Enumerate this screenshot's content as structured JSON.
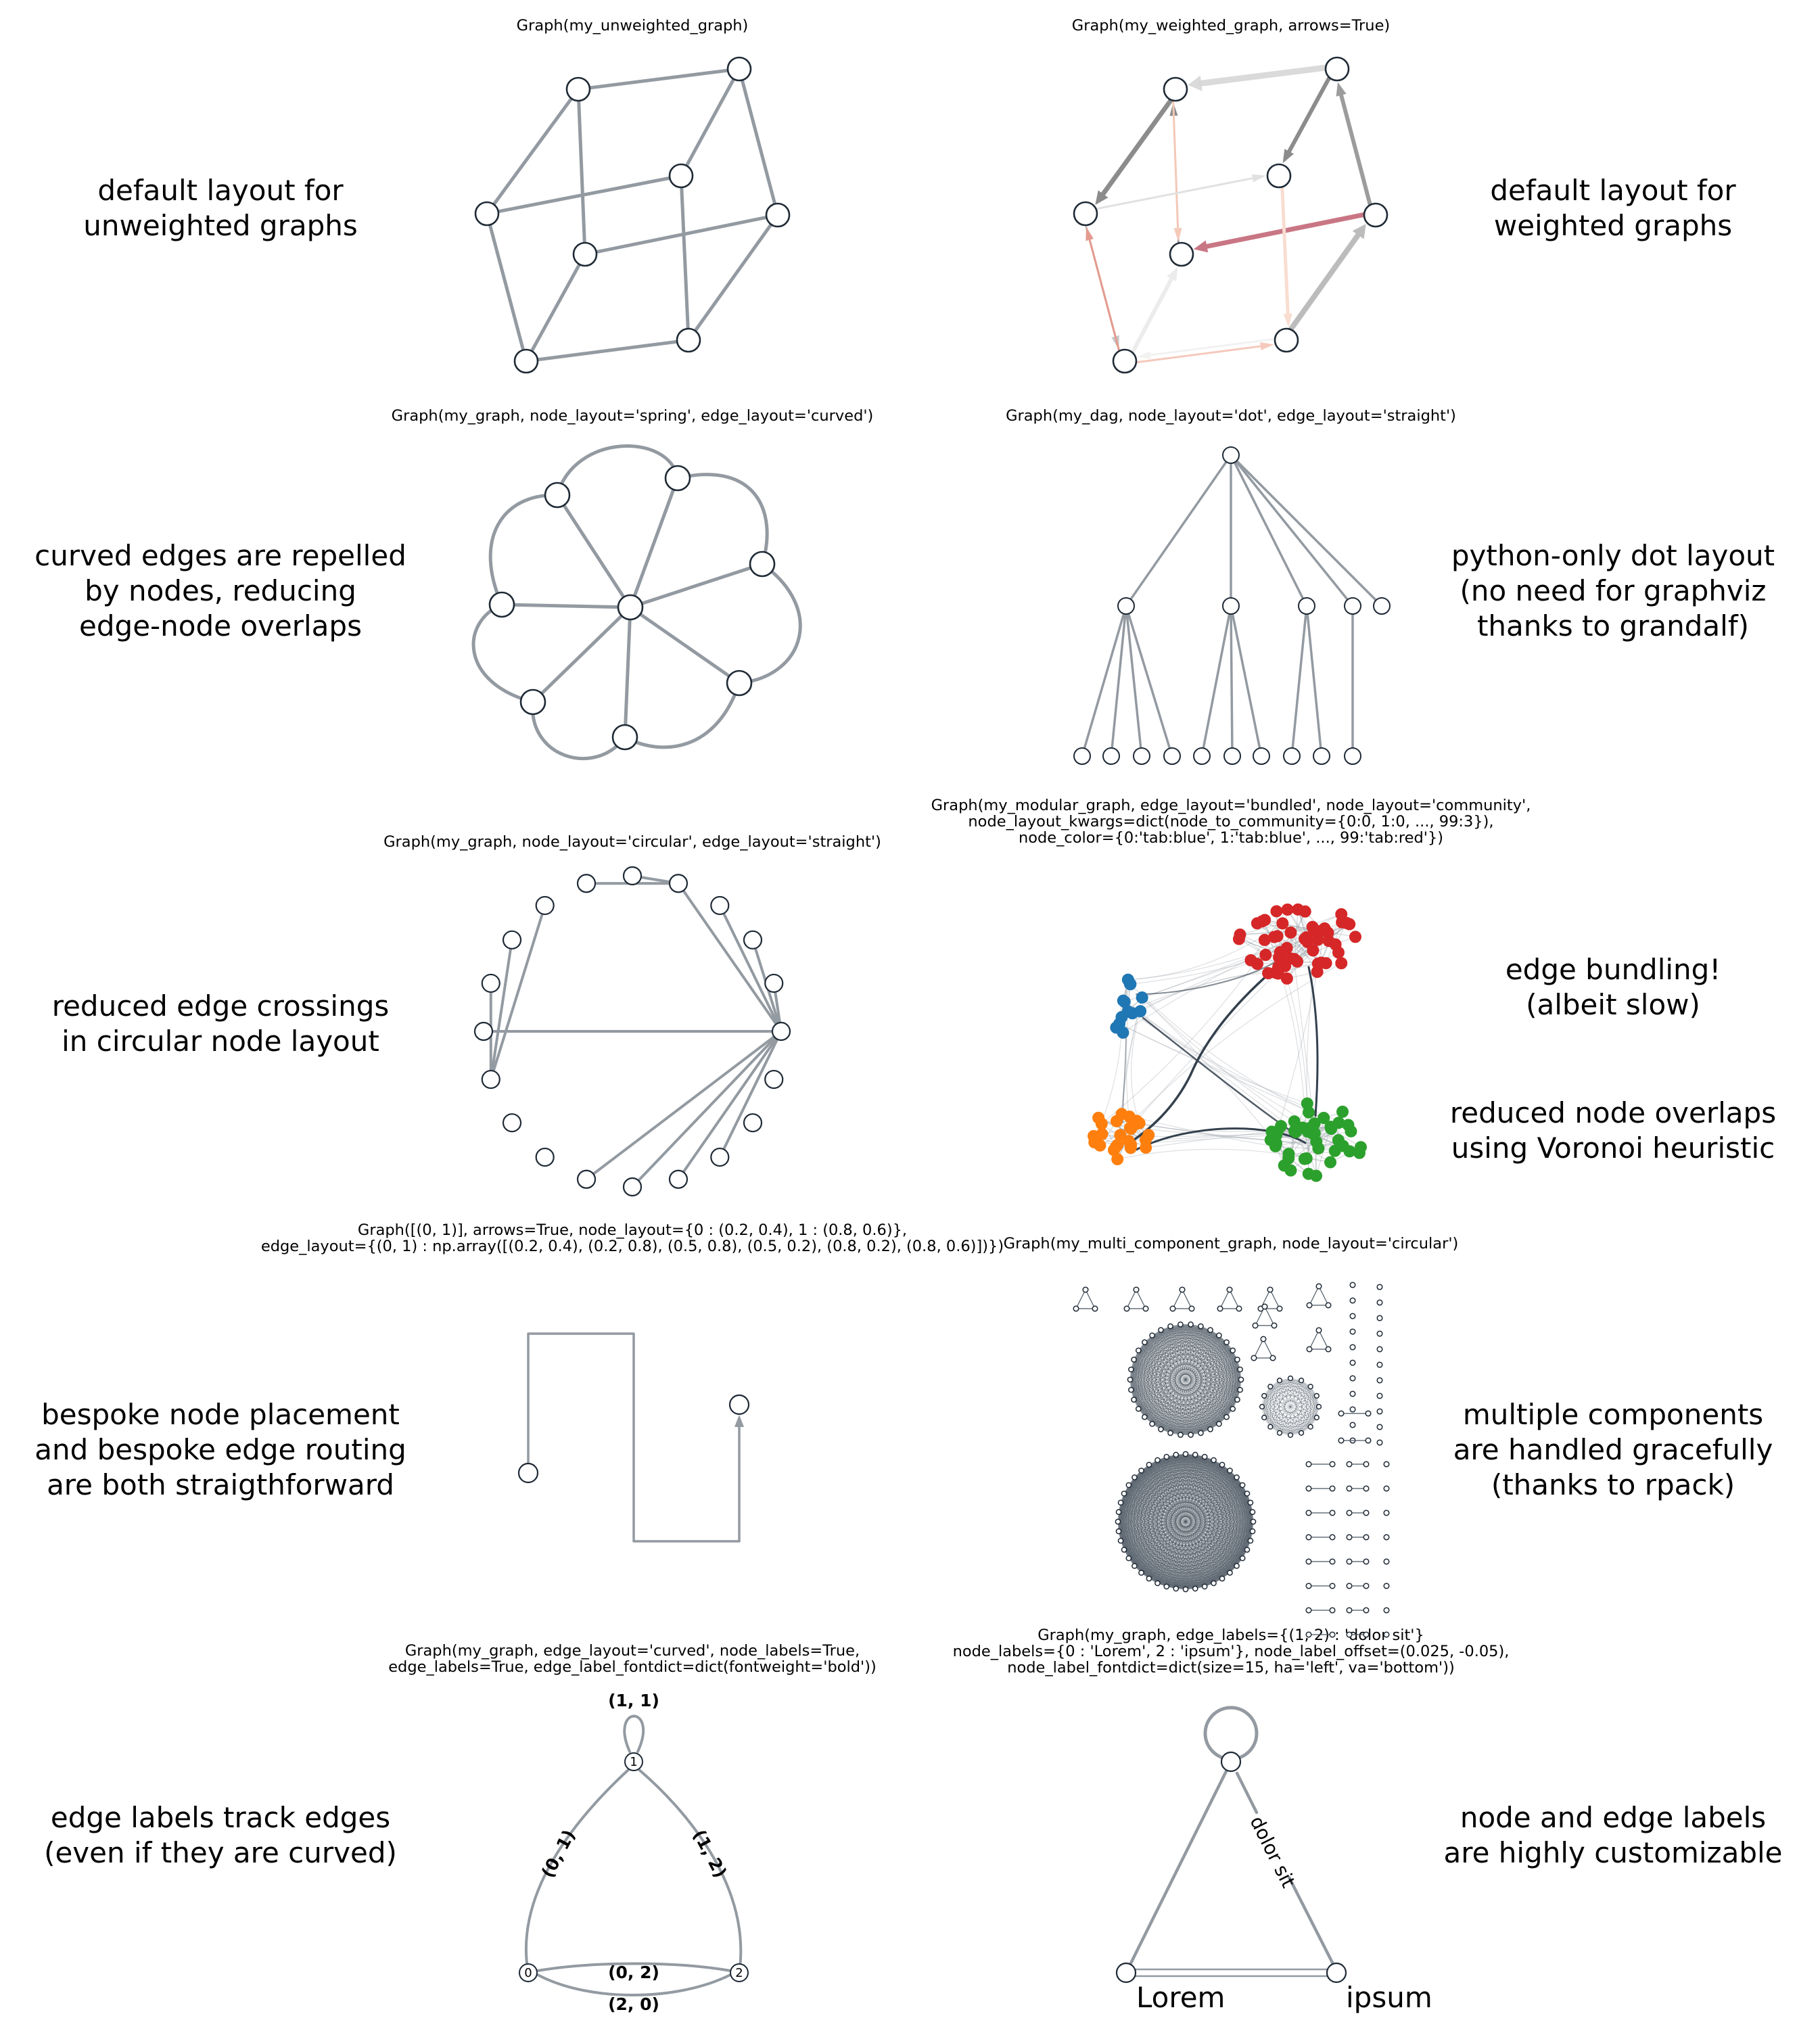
{
  "panels": [
    {
      "id": "unweighted",
      "caption": [
        "Graph(my_unweighted_graph)"
      ],
      "description": [
        "default layout for",
        "unweighted graphs"
      ]
    },
    {
      "id": "weighted",
      "caption": [
        "Graph(my_weighted_graph, arrows=True)"
      ],
      "description": [
        "default layout for",
        "weighted graphs"
      ]
    },
    {
      "id": "curved",
      "caption": [
        "Graph(my_graph, node_layout='spring', edge_layout='curved')"
      ],
      "description": [
        "curved edges are repelled",
        "by nodes, reducing",
        "edge-node overlaps"
      ]
    },
    {
      "id": "dot",
      "caption": [
        "Graph(my_dag, node_layout='dot', edge_layout='straight')"
      ],
      "description": [
        "python-only dot layout",
        "(no need for graphviz",
        "thanks to grandalf)"
      ]
    },
    {
      "id": "circular",
      "caption": [
        "Graph(my_graph, node_layout='circular', edge_layout='straight')"
      ],
      "description": [
        "reduced edge crossings",
        "in circular node layout"
      ]
    },
    {
      "id": "bundled",
      "caption": [
        "Graph(my_modular_graph, edge_layout='bundled', node_layout='community',",
        "node_layout_kwargs=dict(node_to_community={0:0, 1:0, ..., 99:3}),",
        "node_color={0:'tab:blue', 1:'tab:blue', ..., 99:'tab:red'})"
      ],
      "description": [
        "edge bundling!",
        "(albeit slow)"
      ],
      "description2": [
        "reduced node overlaps",
        "using Voronoi heuristic"
      ]
    },
    {
      "id": "bespoke",
      "caption": [
        "Graph([(0, 1)], arrows=True, node_layout={0 : (0.2, 0.4), 1 : (0.8, 0.6)},",
        "edge_layout={(0, 1) : np.array([(0.2, 0.4), (0.2, 0.8), (0.5, 0.8), (0.5, 0.2), (0.8, 0.2), (0.8, 0.6)])})"
      ],
      "description": [
        "bespoke node placement",
        "and bespoke edge routing",
        "are both straigthforward"
      ]
    },
    {
      "id": "multi",
      "caption": [
        "Graph(my_multi_component_graph, node_layout='circular')"
      ],
      "description": [
        "multiple components",
        "are handled gracefully",
        "(thanks to rpack)"
      ]
    },
    {
      "id": "edgelabels",
      "caption": [
        "Graph(my_graph, edge_layout='curved', node_labels=True,",
        "edge_labels=True, edge_label_fontdict=dict(fontweight='bold'))"
      ],
      "description": [
        "edge labels track edges",
        "(even if they are curved)"
      ]
    },
    {
      "id": "nodelabels",
      "caption": [
        "Graph(my_graph, edge_labels={(1, 2) : 'dolor sit'}",
        "node_labels={0 : 'Lorem', 2 : 'ipsum'}, node_label_offset=(0.025, -0.05),",
        "node_label_fontdict=dict(size=15, ha='left', va='bottom'))"
      ],
      "description": [
        "node and edge labels",
        "are highly customizable"
      ]
    }
  ],
  "edge_labels_panel": {
    "node_labels": [
      "0",
      "1",
      "2"
    ],
    "edge_labels": [
      "(1, 1)",
      "(0, 1)",
      "(1, 2)",
      "(0, 2)",
      "(2, 0)"
    ]
  },
  "node_labels_panel": {
    "node_labels": [
      "Lorem",
      "ipsum"
    ],
    "edge_label": "dolor sit"
  },
  "colors": {
    "edge": "#939aa1",
    "node_edge": "#1f2a36",
    "node_face": "#ffffff",
    "tab_blue": "#1f77b4",
    "tab_orange": "#ff7f0e",
    "tab_green": "#2ca02c",
    "tab_red": "#d62728",
    "bundle": "#33404d",
    "weighted_strong": "#c97684"
  }
}
